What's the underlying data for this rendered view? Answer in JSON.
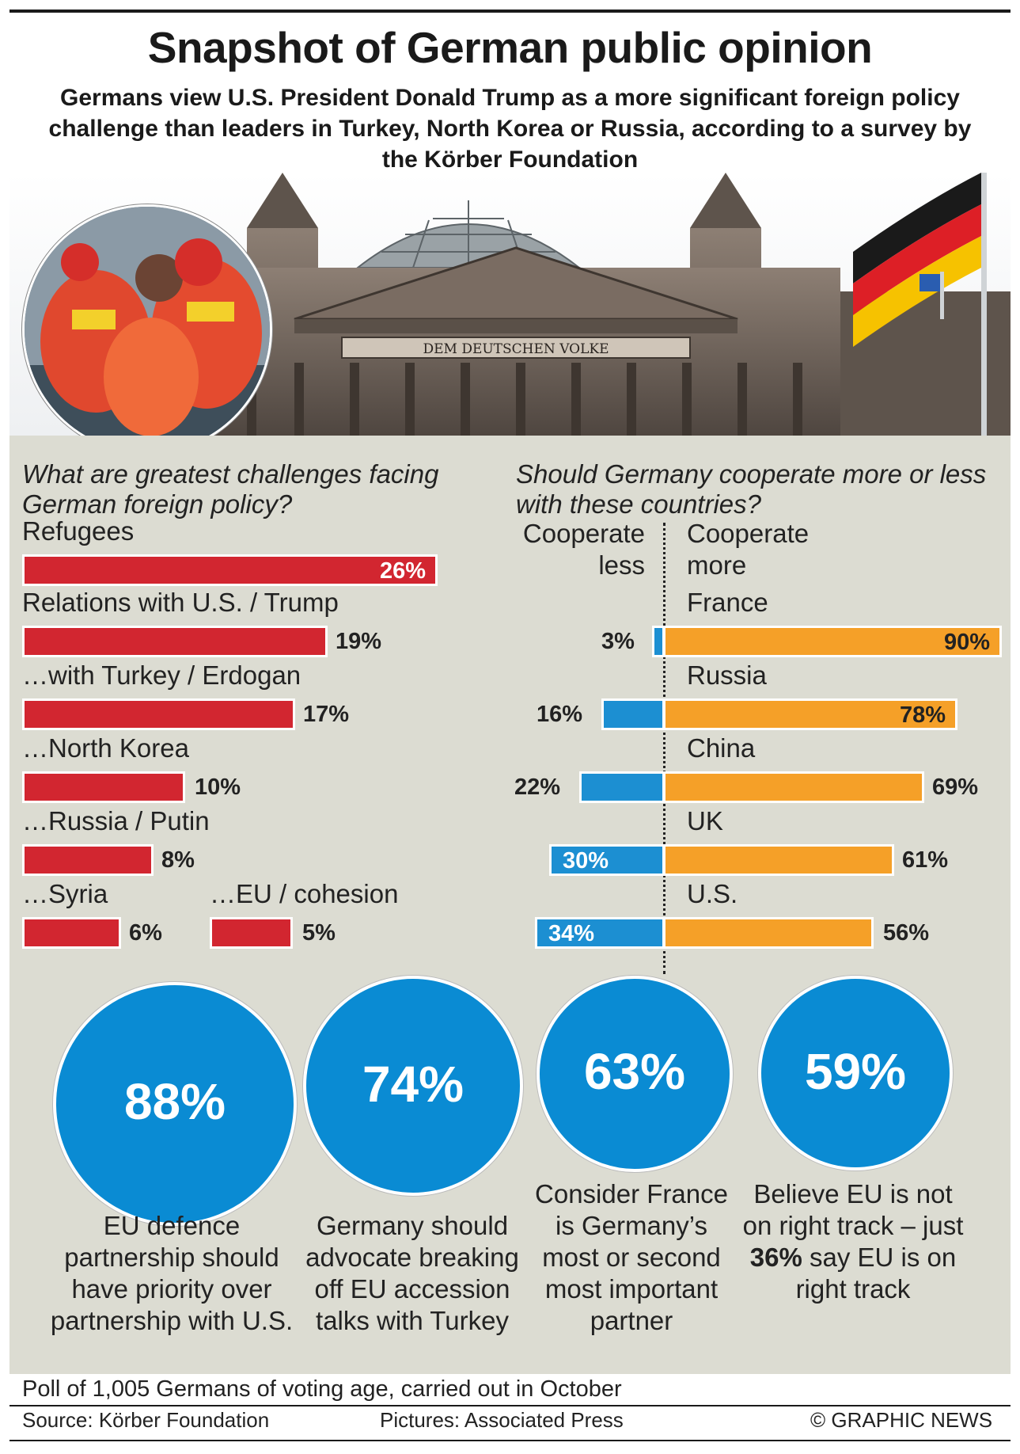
{
  "header": {
    "title": "Snapshot of German public opinion",
    "subtitle": "Germans view U.S. President Donald Trump as a more significant foreign policy challenge than leaders in Turkey, North Korea or Russia, according to a survey by the Körber Foundation",
    "building_inscription": "DEM DEUTSCHEN VOLKE"
  },
  "colors": {
    "red": "#d22630",
    "blue": "#1c8fd2",
    "orange": "#f5a028",
    "circle": "#0a8bd3",
    "panel": "#dcdcd2"
  },
  "chart_data": [
    {
      "type": "bar",
      "title": "What are greatest challenges facing German foreign policy?",
      "categories": [
        "Refugees",
        "Relations with U.S. / Trump",
        "…with Turkey / Erdogan",
        "…North Korea",
        "…Russia / Putin",
        "…Syria",
        "…EU / cohesion"
      ],
      "values": [
        26,
        19,
        17,
        10,
        8,
        6,
        5
      ],
      "labels": [
        "26%",
        "19%",
        "17%",
        "10%",
        "8%",
        "6%",
        "5%"
      ],
      "unit": "%"
    },
    {
      "type": "bar",
      "title": "Should Germany cooperate more or less with these countries?",
      "categories": [
        "France",
        "Russia",
        "China",
        "UK",
        "U.S."
      ],
      "series": [
        {
          "name": "Cooperate less",
          "values": [
            3,
            16,
            22,
            30,
            34
          ],
          "labels": [
            "3%",
            "16%",
            "22%",
            "30%",
            "34%"
          ]
        },
        {
          "name": "Cooperate more",
          "values": [
            90,
            78,
            69,
            61,
            56
          ],
          "labels": [
            "90%",
            "78%",
            "69%",
            "61%",
            "56%"
          ]
        }
      ],
      "less_header": "Cooperate less",
      "more_header": "Cooperate more"
    }
  ],
  "stats": [
    {
      "value": "88%",
      "desc": "EU defence partnership should have priority over partnership with U.S."
    },
    {
      "value": "74%",
      "desc": "Germany should advocate breaking off EU accession talks with Turkey"
    },
    {
      "value": "63%",
      "desc": "Consider France is Germany’s most or second most important partner"
    },
    {
      "value": "59%",
      "desc_before": "Believe EU is not on right track – just ",
      "desc_bold": "36%",
      "desc_after": " say EU is on right track"
    }
  ],
  "footer": {
    "poll": "Poll of 1,005 Germans of voting age, carried out in October",
    "source": "Source: Körber Foundation",
    "pictures": "Pictures: Associated Press",
    "copyright": "© GRAPHIC NEWS"
  }
}
